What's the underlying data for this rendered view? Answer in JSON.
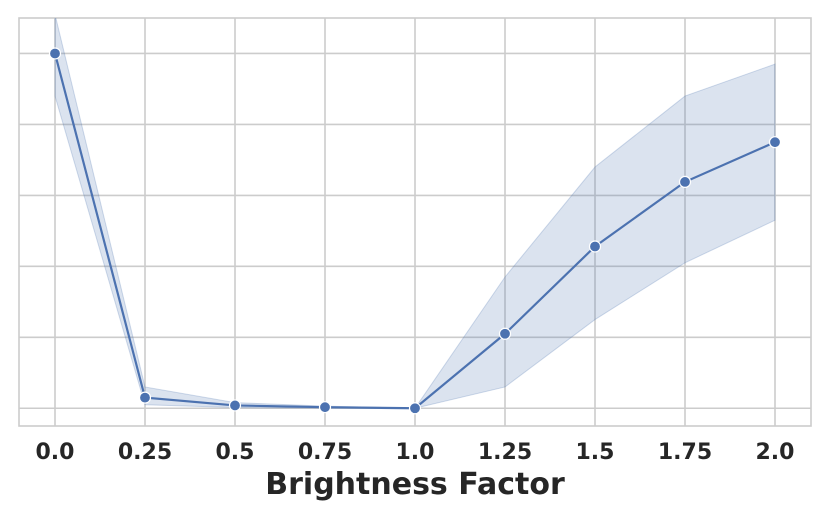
{
  "chart_data": {
    "type": "line",
    "title": "",
    "xlabel": "Brightness Factor",
    "ylabel": "",
    "x": [
      0.0,
      0.25,
      0.5,
      0.75,
      1.0,
      1.25,
      1.5,
      1.75,
      2.0
    ],
    "x_tick_labels": [
      "0.0",
      "0.25",
      "0.5",
      "0.75",
      "1.0",
      "1.25",
      "1.5",
      "1.75",
      "2.0"
    ],
    "xlim": [
      -0.1,
      2.1
    ],
    "ylim": [
      -0.25,
      5.5
    ],
    "y_gridlines": [
      0,
      1,
      2,
      3,
      4,
      5
    ],
    "y_tick_labels_visible": false,
    "series": [
      {
        "values": [
          5.0,
          0.15,
          0.04,
          0.015,
          0.0,
          1.05,
          2.28,
          3.19,
          3.75
        ],
        "ci_lower": [
          4.4,
          0.05,
          0.01,
          0.0,
          0.0,
          0.3,
          1.25,
          2.05,
          2.65
        ],
        "ci_upper": [
          5.55,
          0.3,
          0.08,
          0.03,
          0.0,
          1.85,
          3.4,
          4.4,
          4.85
        ],
        "color": "#4c72b0",
        "band_color": "#4c72b0",
        "marker": "circle"
      }
    ],
    "grid": true,
    "grid_color": "#cccccc",
    "legend": "none"
  }
}
